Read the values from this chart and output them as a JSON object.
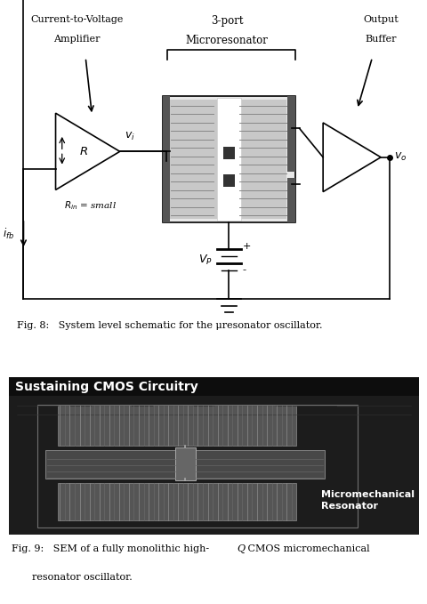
{
  "fig8_caption": "Fig. 8:   System level schematic for the μresonator oscillator.",
  "fig9_caption_pre": "Fig. 9:   SEM of a fully monolithic high-",
  "fig9_caption_Q": "Q",
  "fig9_caption_post": " CMOS micromechanical",
  "fig9_caption_line2": "resonator oscillator.",
  "bg_color": "#ffffff",
  "sem_bg_color": "#111111",
  "label_current_voltage_1": "Current-to-Voltage",
  "label_current_voltage_2": "Amplifier",
  "label_microresonator_1": "3-port",
  "label_microresonator_2": "Microresonator",
  "label_output_buffer_1": "Output",
  "label_output_buffer_2": "Buffer",
  "label_Rin": "$R_{in}$ = small",
  "label_VP": "$V_P$",
  "label_vi": "$v_i$",
  "label_vo": "$v_o$",
  "label_R": "$R$",
  "label_ifb": "$i_{fb}$",
  "label_sustaining": "Sustaining CMOS Circuitry",
  "label_micromechanical_1": "Micromechanical",
  "label_micromechanical_2": "Resonator"
}
